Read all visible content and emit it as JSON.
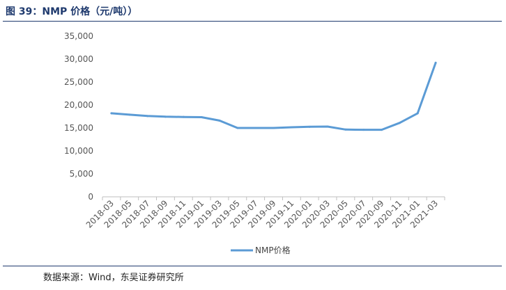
{
  "figure": {
    "title": "图 39：NMP 价格（元/吨））",
    "source": "数据来源：Wind，东吴证券研究所"
  },
  "colors": {
    "series": "#5b9bd5",
    "title": "#1f3a6e",
    "axis": "#bfbfbf"
  },
  "chart_data": {
    "type": "line",
    "x": [
      "2018-03",
      "2018-05",
      "2018-07",
      "2018-09",
      "2018-11",
      "2019-01",
      "2019-03",
      "2019-05",
      "2019-07",
      "2019-09",
      "2019-11",
      "2020-01",
      "2020-03",
      "2020-05",
      "2020-07",
      "2020-09",
      "2020-11",
      "2021-01",
      "2021-03"
    ],
    "series": [
      {
        "name": "NMP价格",
        "values": [
          18200,
          17900,
          17600,
          17450,
          17400,
          17350,
          16600,
          15000,
          15000,
          15000,
          15150,
          15250,
          15300,
          14650,
          14600,
          14600,
          16100,
          18200,
          29200
        ]
      }
    ],
    "yticks": [
      "0",
      "5,000",
      "10,000",
      "15,000",
      "20,000",
      "25,000",
      "30,000",
      "35,000"
    ],
    "ylim": [
      0,
      35000
    ],
    "grid": false,
    "legend": "bottom"
  }
}
